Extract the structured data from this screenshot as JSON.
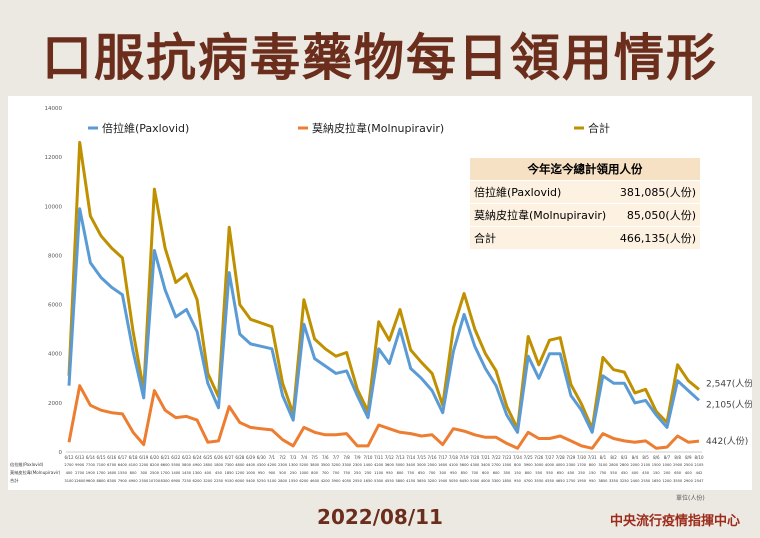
{
  "title": "口服抗病毒藥物每日領用情形",
  "date": "2022/08/11",
  "source": "中央流行疫情指揮中心",
  "unit_note": "單位(人份)",
  "summary": {
    "header": "今年迄今總計領用人份",
    "rows": [
      {
        "label": "倍拉維(Paxlovid)",
        "value": "381,085(人份)"
      },
      {
        "label": "莫納皮拉韋(Molnupiravir)",
        "value": "85,050(人份)"
      },
      {
        "label": "合計",
        "value": "466,135(人份)"
      }
    ]
  },
  "end_labels": {
    "total": "2,547(人份)",
    "pax": "2,105(人份)",
    "mol": "442(人份)"
  },
  "table_row_labels": [
    "倍拉維(Paxlovid)",
    "莫納皮拉韋(Molnupiravir)",
    "合計"
  ],
  "colors": {
    "paxlovid": "#5b9bd5",
    "molnupiravir": "#ed7d31",
    "total": "#bf9000",
    "title": "#6b2d1c"
  },
  "chart_data": {
    "type": "line",
    "title": "",
    "xlabel": "",
    "ylabel": "",
    "ylim": [
      0,
      14000
    ],
    "yticks": [
      0,
      2000,
      4000,
      6000,
      8000,
      10000,
      12000,
      14000
    ],
    "grid": false,
    "legend_position": "top",
    "x": [
      "6/12",
      "6/13",
      "6/14",
      "6/15",
      "6/16",
      "6/17",
      "6/18",
      "6/19",
      "6/20",
      "6/21",
      "6/22",
      "6/23",
      "6/24",
      "6/25",
      "6/26",
      "6/27",
      "6/28",
      "6/29",
      "6/30",
      "7/1",
      "7/2",
      "7/3",
      "7/4",
      "7/5",
      "7/6",
      "7/7",
      "7/8",
      "7/9",
      "7/10",
      "7/11",
      "7/12",
      "7/13",
      "7/14",
      "7/15",
      "7/16",
      "7/17",
      "7/18",
      "7/19",
      "7/20",
      "7/21",
      "7/22",
      "7/23",
      "7/24",
      "7/25",
      "7/26",
      "7/27",
      "7/28",
      "7/29",
      "7/30",
      "7/31",
      "8/1",
      "8/2",
      "8/3",
      "8/4",
      "8/5",
      "8/6",
      "8/7",
      "8/8",
      "8/9",
      "8/10"
    ],
    "series": [
      {
        "name": "倍拉維(Paxlovid)",
        "values": [
          2700,
          9900,
          7700,
          7100,
          6700,
          6400,
          4100,
          2200,
          8200,
          6600,
          5500,
          5800,
          4900,
          2800,
          1800,
          7300,
          4800,
          4400,
          4300,
          4200,
          2300,
          1300,
          5200,
          3800,
          3500,
          3200,
          3300,
          2300,
          1400,
          4200,
          3600,
          5000,
          3400,
          3000,
          2500,
          1600,
          4100,
          5600,
          4300,
          3400,
          2700,
          1500,
          800,
          3900,
          3000,
          4000,
          4000,
          2300,
          1700,
          800,
          3100,
          2800,
          2800,
          2000,
          2100,
          1500,
          1000,
          2900,
          2500,
          2105
        ]
      },
      {
        "name": "莫納皮拉韋(Molnupiravir)",
        "values": [
          400,
          2700,
          1900,
          1700,
          1600,
          1550,
          800,
          300,
          2500,
          1700,
          1400,
          1450,
          1300,
          400,
          450,
          1850,
          1200,
          1000,
          950,
          900,
          500,
          250,
          1000,
          800,
          700,
          700,
          750,
          250,
          250,
          1100,
          950,
          800,
          750,
          650,
          700,
          300,
          950,
          850,
          700,
          600,
          600,
          350,
          150,
          800,
          550,
          550,
          650,
          450,
          250,
          150,
          750,
          550,
          450,
          400,
          450,
          150,
          200,
          650,
          400,
          442
        ]
      },
      {
        "name": "合計",
        "values": [
          3100,
          12600,
          9600,
          8800,
          8300,
          7900,
          4900,
          2500,
          10700,
          8300,
          6900,
          7250,
          6200,
          3200,
          2250,
          9150,
          6000,
          5400,
          5250,
          5100,
          2800,
          1550,
          6200,
          4600,
          4200,
          3900,
          4050,
          2550,
          1650,
          5300,
          4550,
          5800,
          4150,
          3650,
          3200,
          1900,
          5050,
          6450,
          5000,
          4000,
          3300,
          1850,
          950,
          4700,
          3550,
          4550,
          4650,
          2750,
          1950,
          950,
          3850,
          3350,
          3250,
          2400,
          2550,
          1650,
          1200,
          3550,
          2900,
          2547
        ]
      }
    ]
  }
}
